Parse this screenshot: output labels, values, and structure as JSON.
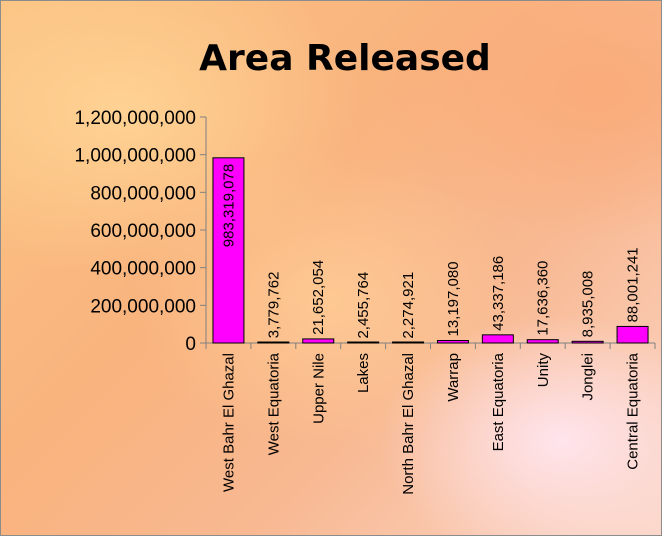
{
  "chart_data": {
    "type": "bar",
    "title": "Area Released",
    "xlabel": "",
    "ylabel": "",
    "ylim": [
      0,
      1200000000
    ],
    "y_tick_values": [
      0,
      200000000,
      400000000,
      600000000,
      800000000,
      1000000000,
      1200000000
    ],
    "y_tick_labels": [
      "0",
      "200,000,000",
      "400,000,000",
      "600,000,000",
      "800,000,000",
      "1,000,000,000",
      "1,200,000,000"
    ],
    "categories": [
      "West Bahr El Ghazal",
      "West Equatoria",
      "Upper Nile",
      "Lakes",
      "North Bahr El Ghazal",
      "Warrap",
      "East Equatoria",
      "Unity",
      "Jonglei",
      "Central Equatoria"
    ],
    "values": [
      983319078,
      3779762,
      21652054,
      2455764,
      2274921,
      13197080,
      43337186,
      17636360,
      8935008,
      88001241
    ],
    "data_labels": [
      "983,319,078",
      "3,779,762",
      "21,652,054",
      "2,455,764",
      "2,274,921",
      "13,197,080",
      "43,337,186",
      "17,636,360",
      "8,935,008",
      "88,001,241"
    ],
    "bar_color": "#ff00ff",
    "grid": false,
    "legend": "none"
  }
}
